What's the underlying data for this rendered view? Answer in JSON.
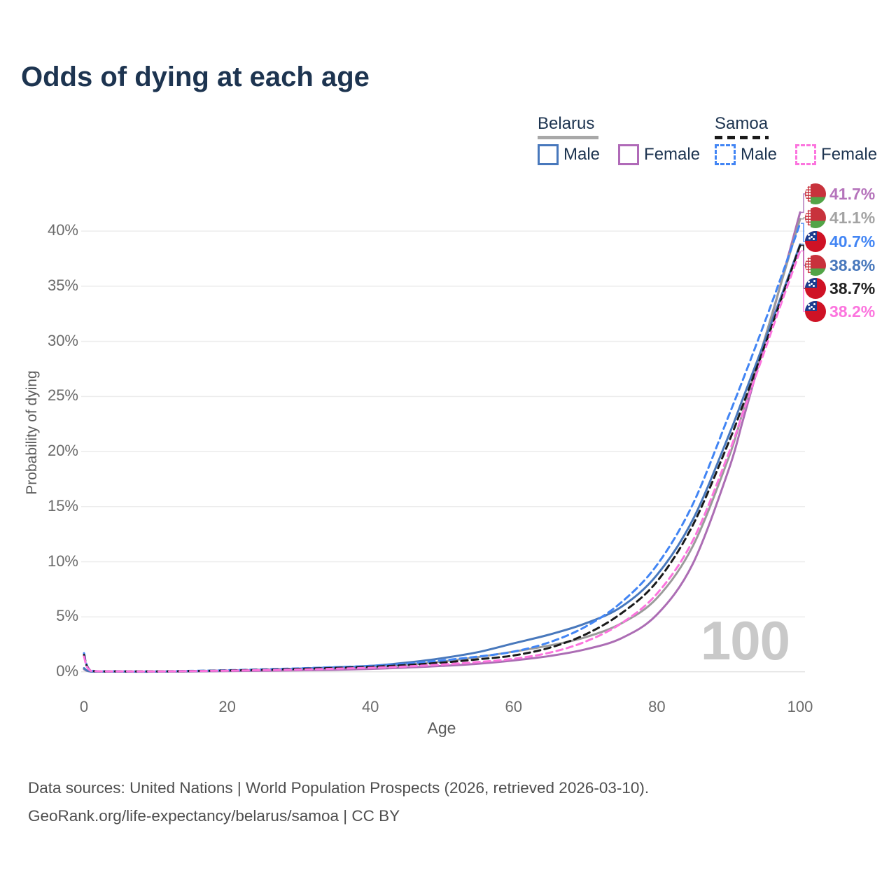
{
  "title": "Odds of dying at each age",
  "watermark": "100",
  "legend": {
    "groups": [
      {
        "name": "Belarus",
        "line_style": "solid",
        "underline_color": "#a8a8a8",
        "items": [
          {
            "label": "Male",
            "color": "#4878bc"
          },
          {
            "label": "Female",
            "color": "#b06ab8"
          }
        ]
      },
      {
        "name": "Samoa",
        "line_style": "dashed",
        "underline_color": "#1a1a1a",
        "items": [
          {
            "label": "Male",
            "color": "#4285f4"
          },
          {
            "label": "Female",
            "color": "#fc74de"
          }
        ]
      }
    ]
  },
  "axes": {
    "x": {
      "title": "Age",
      "tick_values": [
        0,
        20,
        40,
        60,
        80,
        100
      ],
      "tick_labels": [
        "0",
        "20",
        "40",
        "60",
        "80",
        "100"
      ],
      "range": [
        0,
        100
      ]
    },
    "y": {
      "title": "Probability of dying",
      "tick_values": [
        0,
        5,
        10,
        15,
        20,
        25,
        30,
        35,
        40
      ],
      "tick_labels": [
        "0%",
        "5%",
        "10%",
        "15%",
        "20%",
        "25%",
        "30%",
        "35%",
        "40%"
      ],
      "range_pct": [
        0,
        44
      ],
      "grid": true
    }
  },
  "chart_data": {
    "type": "line",
    "title": "Odds of dying at each age",
    "xlabel": "Age",
    "ylabel": "Probability of dying",
    "x_ages": [
      0,
      1,
      5,
      10,
      15,
      20,
      25,
      30,
      35,
      40,
      45,
      50,
      55,
      60,
      65,
      70,
      75,
      80,
      85,
      90,
      92,
      94,
      96,
      98,
      100
    ],
    "series": [
      {
        "id": "belarus-female",
        "name": "Belarus Female",
        "country": "Belarus",
        "sex": "Female",
        "color": "#ac6db4",
        "dashed": false,
        "flag": "belarus",
        "end_label": "41.7%",
        "end_label_color": "#b573bb",
        "values": [
          0.25,
          0.04,
          0.03,
          0.03,
          0.05,
          0.08,
          0.11,
          0.15,
          0.2,
          0.28,
          0.4,
          0.55,
          0.75,
          1.05,
          1.45,
          2.05,
          3.05,
          5.2,
          9.8,
          18.3,
          22.8,
          27.4,
          32.1,
          36.9,
          41.7
        ]
      },
      {
        "id": "belarus-all",
        "name": "Belarus",
        "country": "Belarus",
        "sex": "All",
        "color": "#9b9b9b",
        "dashed": false,
        "flag": "belarus",
        "end_label": "41.1%",
        "end_label_color": "#a3a3a3",
        "values": [
          0.3,
          0.045,
          0.035,
          0.035,
          0.07,
          0.11,
          0.17,
          0.25,
          0.35,
          0.46,
          0.65,
          0.95,
          1.35,
          1.85,
          2.4,
          3.15,
          4.4,
          6.7,
          11.4,
          19.4,
          23.6,
          27.9,
          32.3,
          36.7,
          41.1
        ]
      },
      {
        "id": "belarus-male",
        "name": "Belarus Male",
        "country": "Belarus",
        "sex": "Male",
        "color": "#4878bc",
        "dashed": false,
        "flag": "belarus",
        "end_label": "38.8%",
        "end_label_color": "#4878bc",
        "values": [
          0.35,
          0.05,
          0.04,
          0.04,
          0.08,
          0.13,
          0.2,
          0.3,
          0.42,
          0.55,
          0.85,
          1.25,
          1.8,
          2.6,
          3.4,
          4.4,
          5.9,
          8.8,
          13.8,
          21.4,
          24.8,
          28.2,
          31.7,
          35.2,
          38.8
        ]
      },
      {
        "id": "samoa-male",
        "name": "Samoa Male",
        "country": "Samoa",
        "sex": "Male",
        "color": "#4285f4",
        "dashed": true,
        "flag": "samoa",
        "end_label": "40.7%",
        "end_label_color": "#4285f4",
        "values": [
          1.7,
          0.12,
          0.07,
          0.06,
          0.1,
          0.16,
          0.24,
          0.33,
          0.44,
          0.55,
          0.75,
          1.05,
          1.4,
          1.85,
          2.7,
          4.1,
          6.3,
          9.7,
          15.2,
          23.2,
          26.5,
          29.9,
          33.4,
          37.0,
          40.7
        ]
      },
      {
        "id": "samoa-all",
        "name": "Samoa",
        "country": "Samoa",
        "sex": "All",
        "color": "#1a1a1a",
        "dashed": true,
        "flag": "samoa",
        "end_label": "38.7%",
        "end_label_color": "#222222",
        "values": [
          1.55,
          0.11,
          0.06,
          0.055,
          0.09,
          0.14,
          0.2,
          0.28,
          0.37,
          0.47,
          0.63,
          0.85,
          1.15,
          1.5,
          2.2,
          3.4,
          5.3,
          8.2,
          13.3,
          20.8,
          24.2,
          27.7,
          31.3,
          35.0,
          38.7
        ]
      },
      {
        "id": "samoa-female",
        "name": "Samoa Female",
        "country": "Samoa",
        "sex": "Female",
        "color": "#fc74de",
        "dashed": true,
        "flag": "samoa",
        "end_label": "38.2%",
        "end_label_color": "#fc74de",
        "values": [
          1.4,
          0.1,
          0.06,
          0.05,
          0.08,
          0.12,
          0.17,
          0.22,
          0.3,
          0.38,
          0.5,
          0.68,
          0.9,
          1.2,
          1.75,
          2.75,
          4.4,
          7.1,
          11.9,
          19.8,
          23.5,
          27.2,
          30.9,
          34.6,
          38.2
        ]
      }
    ]
  },
  "footer": {
    "line1": "Data sources: United Nations | World Population Prospects (2026, retrieved 2026-03-10).",
    "line2": "GeoRank.org/life-expectancy/belarus/samoa | CC BY"
  }
}
